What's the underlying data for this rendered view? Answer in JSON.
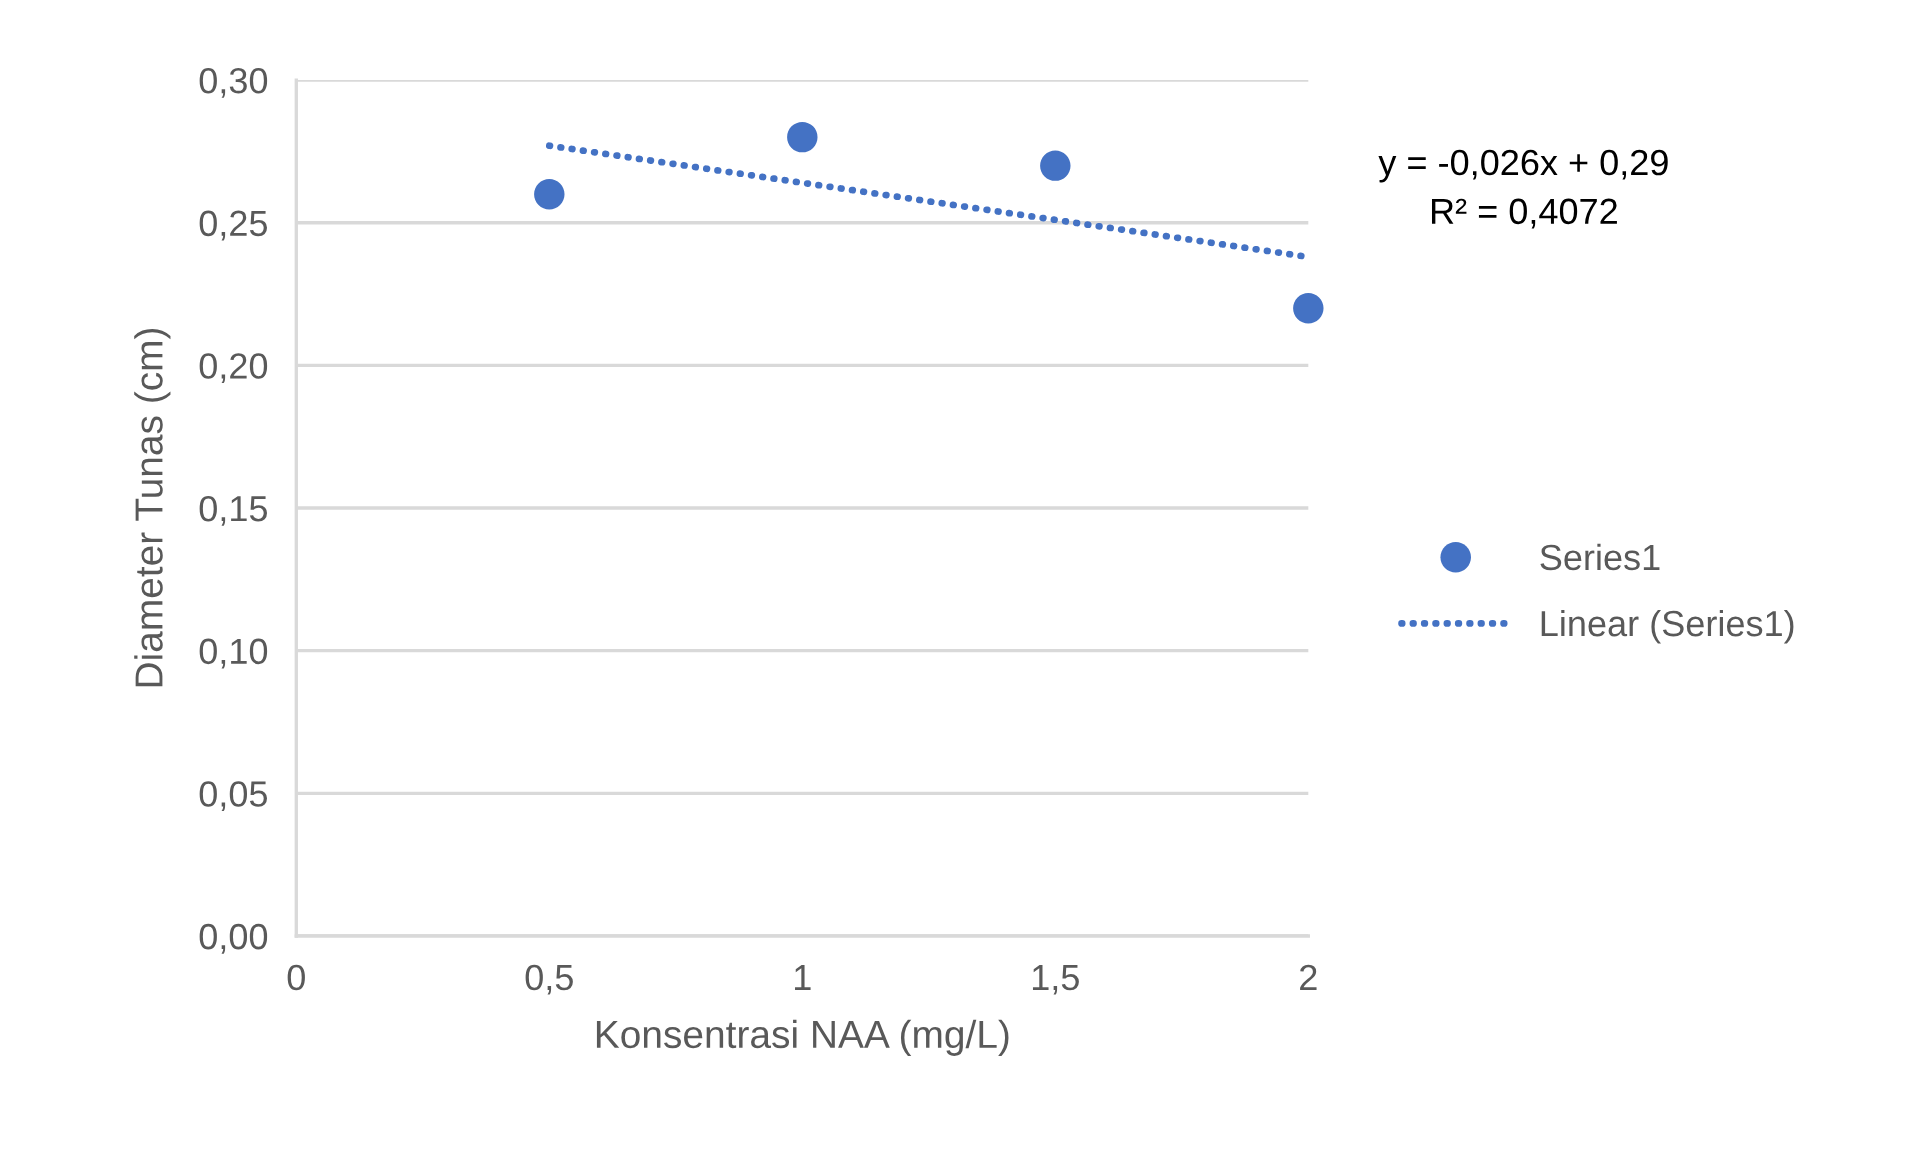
{
  "chart_data": {
    "type": "scatter",
    "xlabel": "Konsentrasi NAA (mg/L)",
    "ylabel": "Diameter Tunas (cm)",
    "series": [
      {
        "name": "Series1",
        "color": "#4472c4",
        "x": [
          0.5,
          1,
          1.5,
          2
        ],
        "values": [
          0.26,
          0.28,
          0.27,
          0.22
        ]
      },
      {
        "name": "Linear (Series1)",
        "type": "line",
        "color": "#4472c4",
        "line_style": "dotted",
        "marker": "none",
        "x": [
          0.5,
          2
        ],
        "values": [
          0.277,
          0.238
        ]
      }
    ],
    "xlim": [
      0,
      2
    ],
    "xticks": [
      0,
      {
        "value": 0.5,
        "label": "0,5"
      },
      1,
      {
        "value": 1.5,
        "label": "1,5"
      },
      2
    ],
    "ylim": [
      0,
      0.3
    ],
    "yticks": [
      {
        "value": 0,
        "label": "0,00"
      },
      {
        "value": 0.05,
        "label": "0,05"
      },
      {
        "value": 0.1,
        "label": "0,10"
      },
      {
        "value": 0.15,
        "label": "0,15"
      },
      {
        "value": 0.2,
        "label": "0,20"
      },
      {
        "value": 0.25,
        "label": "0,25"
      },
      {
        "value": 0.3,
        "label": "0,30"
      }
    ],
    "grid": "y",
    "legend": "right",
    "marker": "circle",
    "annotations": [
      "y = -0,026x + 0,29",
      "R² = 0,4072"
    ]
  }
}
